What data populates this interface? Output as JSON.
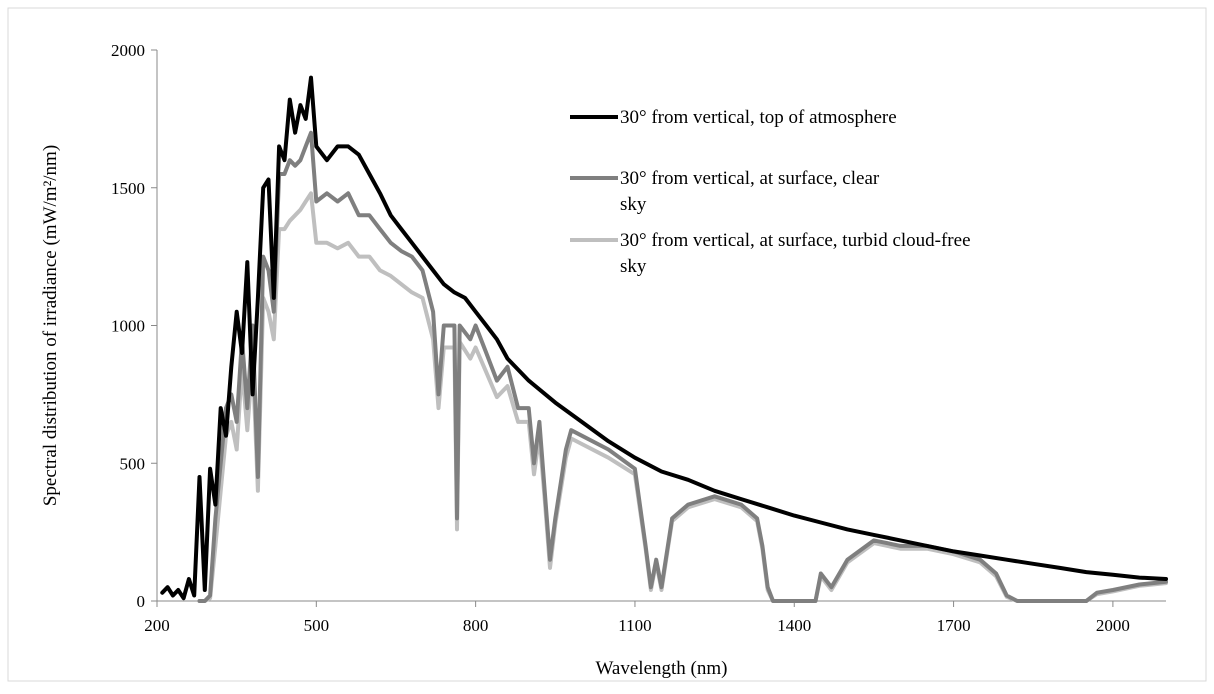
{
  "chart_data": {
    "type": "line",
    "title": "",
    "xlabel": "Wavelength (nm)",
    "ylabel": "Spectral distribution of irradiance (mW/m²/nm)",
    "xlim": [
      200,
      2100
    ],
    "ylim": [
      0,
      2000
    ],
    "xticks": [
      200,
      500,
      800,
      1100,
      1400,
      1700,
      2000
    ],
    "yticks": [
      0,
      500,
      1000,
      1500,
      2000
    ],
    "xtick_labels": [
      "200",
      "500",
      "800",
      "1100",
      "1400",
      "1700",
      "2000"
    ],
    "ytick_labels": [
      "0",
      "500",
      "1000",
      "1500",
      "2000"
    ],
    "grid": false,
    "legend_position": "top-right",
    "series": [
      {
        "name": "30° from vertical, top of atmosphere",
        "color": "#000000",
        "x": [
          210,
          220,
          230,
          240,
          250,
          260,
          270,
          280,
          290,
          300,
          310,
          320,
          330,
          340,
          350,
          360,
          370,
          380,
          390,
          400,
          410,
          420,
          430,
          440,
          450,
          460,
          470,
          480,
          490,
          500,
          520,
          540,
          560,
          580,
          600,
          620,
          640,
          660,
          680,
          700,
          720,
          740,
          760,
          780,
          800,
          820,
          840,
          860,
          880,
          900,
          950,
          1000,
          1050,
          1100,
          1150,
          1200,
          1250,
          1300,
          1350,
          1400,
          1450,
          1500,
          1550,
          1600,
          1650,
          1700,
          1750,
          1800,
          1850,
          1900,
          1950,
          2000,
          2050,
          2100
        ],
        "y": [
          30,
          50,
          20,
          40,
          10,
          80,
          20,
          450,
          40,
          480,
          350,
          700,
          600,
          850,
          1050,
          900,
          1230,
          750,
          1100,
          1500,
          1530,
          1100,
          1650,
          1600,
          1820,
          1700,
          1800,
          1750,
          1900,
          1650,
          1600,
          1650,
          1650,
          1620,
          1550,
          1480,
          1400,
          1350,
          1300,
          1250,
          1200,
          1150,
          1120,
          1100,
          1050,
          1000,
          950,
          880,
          840,
          800,
          720,
          650,
          580,
          520,
          470,
          440,
          400,
          370,
          340,
          310,
          285,
          260,
          240,
          220,
          200,
          180,
          165,
          150,
          135,
          120,
          105,
          95,
          85,
          80
        ]
      },
      {
        "name": "30° from vertical, at surface, clear sky",
        "color": "#7f7f7f",
        "x": [
          280,
          290,
          300,
          310,
          320,
          330,
          340,
          350,
          360,
          370,
          380,
          390,
          400,
          410,
          420,
          430,
          440,
          450,
          460,
          470,
          480,
          490,
          500,
          520,
          540,
          560,
          580,
          600,
          620,
          640,
          660,
          680,
          700,
          720,
          730,
          740,
          760,
          765,
          770,
          790,
          800,
          820,
          840,
          860,
          880,
          900,
          910,
          920,
          930,
          940,
          950,
          970,
          980,
          1000,
          1050,
          1100,
          1120,
          1130,
          1140,
          1150,
          1170,
          1200,
          1250,
          1300,
          1330,
          1340,
          1350,
          1360,
          1400,
          1440,
          1450,
          1470,
          1500,
          1550,
          1600,
          1650,
          1700,
          1750,
          1780,
          1800,
          1820,
          1900,
          1950,
          1970,
          2000,
          2050,
          2100
        ],
        "y": [
          0,
          0,
          20,
          300,
          500,
          700,
          750,
          650,
          950,
          700,
          1000,
          450,
          1250,
          1200,
          1050,
          1550,
          1550,
          1600,
          1580,
          1600,
          1650,
          1700,
          1450,
          1480,
          1450,
          1480,
          1400,
          1400,
          1350,
          1300,
          1270,
          1250,
          1200,
          1050,
          750,
          1000,
          1000,
          300,
          1000,
          950,
          1000,
          900,
          800,
          850,
          700,
          700,
          500,
          650,
          400,
          150,
          300,
          550,
          620,
          600,
          550,
          480,
          200,
          50,
          150,
          50,
          300,
          350,
          380,
          350,
          300,
          200,
          50,
          0,
          0,
          0,
          100,
          50,
          150,
          220,
          200,
          200,
          180,
          150,
          100,
          20,
          0,
          0,
          0,
          30,
          40,
          60,
          70
        ]
      },
      {
        "name": "30° from vertical, at surface, turbid cloud-free sky",
        "color": "#bfbfbf",
        "x": [
          280,
          290,
          300,
          310,
          320,
          330,
          340,
          350,
          360,
          370,
          380,
          390,
          400,
          410,
          420,
          430,
          440,
          450,
          460,
          470,
          480,
          490,
          500,
          520,
          540,
          560,
          580,
          600,
          620,
          640,
          660,
          680,
          700,
          720,
          730,
          740,
          760,
          765,
          770,
          790,
          800,
          820,
          840,
          860,
          880,
          900,
          910,
          920,
          930,
          940,
          950,
          970,
          980,
          1000,
          1050,
          1100,
          1120,
          1130,
          1140,
          1150,
          1170,
          1200,
          1250,
          1300,
          1330,
          1340,
          1350,
          1360,
          1400,
          1440,
          1450,
          1470,
          1500,
          1550,
          1600,
          1650,
          1700,
          1750,
          1780,
          1800,
          1820,
          1900,
          1950,
          1970,
          2000,
          2050,
          2100
        ],
        "y": [
          0,
          0,
          10,
          200,
          400,
          600,
          650,
          550,
          850,
          620,
          880,
          400,
          1100,
          1050,
          950,
          1350,
          1350,
          1380,
          1400,
          1420,
          1450,
          1480,
          1300,
          1300,
          1280,
          1300,
          1250,
          1250,
          1200,
          1180,
          1150,
          1120,
          1100,
          950,
          700,
          920,
          920,
          260,
          940,
          880,
          920,
          830,
          740,
          780,
          650,
          650,
          460,
          600,
          370,
          120,
          280,
          520,
          590,
          570,
          520,
          460,
          190,
          40,
          140,
          40,
          290,
          340,
          370,
          340,
          290,
          190,
          40,
          0,
          0,
          0,
          90,
          40,
          140,
          210,
          190,
          190,
          170,
          140,
          90,
          15,
          0,
          0,
          0,
          25,
          35,
          55,
          65
        ]
      }
    ]
  }
}
